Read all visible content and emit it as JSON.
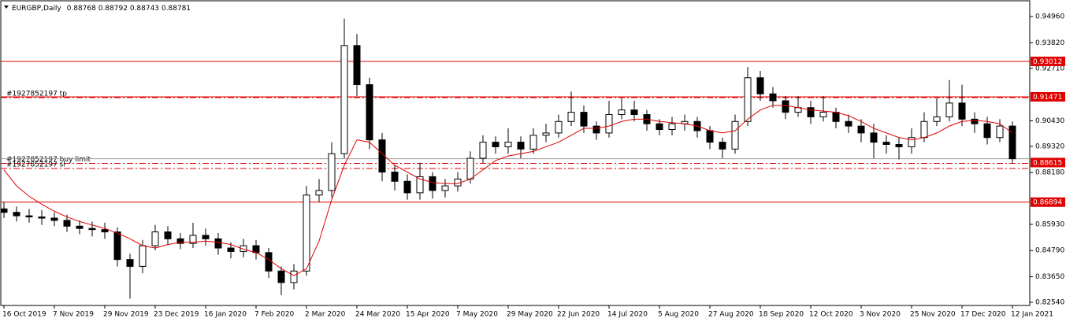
{
  "header": {
    "symbol": "EURGBP,Daily",
    "open": 0.88768,
    "high": 0.88792,
    "low": 0.88743,
    "close": 0.88781
  },
  "chart_data": {
    "type": "candlestick",
    "x": [
      0,
      4,
      8,
      12,
      16,
      20,
      24,
      28,
      32,
      36,
      40,
      44,
      48,
      52,
      56,
      60,
      64,
      68,
      72,
      76,
      80,
      84,
      88,
      92,
      96,
      100,
      104,
      108,
      112,
      116,
      120,
      124,
      128,
      132,
      136,
      140,
      144,
      148,
      152,
      156,
      160,
      164,
      168,
      172,
      176,
      180,
      184,
      188,
      192,
      196,
      200,
      204,
      208,
      212,
      216,
      220,
      224,
      228,
      232,
      236,
      240,
      244,
      248,
      252,
      256,
      260,
      264,
      268,
      272,
      276,
      280,
      284,
      288,
      292,
      296,
      300,
      304,
      308,
      312,
      316,
      320
    ],
    "open": [
      0.866,
      0.8645,
      0.863,
      0.8625,
      0.862,
      0.861,
      0.8585,
      0.8575,
      0.857,
      0.856,
      0.844,
      0.841,
      0.85,
      0.856,
      0.853,
      0.851,
      0.8545,
      0.853,
      0.849,
      0.8475,
      0.85,
      0.847,
      0.839,
      0.834,
      0.839,
      0.872,
      0.874,
      0.89,
      0.937,
      0.92,
      0.896,
      0.882,
      0.878,
      0.873,
      0.88,
      0.874,
      0.876,
      0.879,
      0.888,
      0.895,
      0.893,
      0.895,
      0.892,
      0.898,
      0.899,
      0.904,
      0.908,
      0.902,
      0.899,
      0.907,
      0.909,
      0.907,
      0.903,
      0.9005,
      0.903,
      0.904,
      0.9,
      0.895,
      0.892,
      0.904,
      0.923,
      0.916,
      0.913,
      0.908,
      0.91,
      0.906,
      0.908,
      0.904,
      0.902,
      0.899,
      0.895,
      0.894,
      0.893,
      0.897,
      0.904,
      0.906,
      0.912,
      0.905,
      0.903,
      0.897,
      0.902
    ],
    "high": [
      0.869,
      0.867,
      0.866,
      0.8655,
      0.8645,
      0.8635,
      0.861,
      0.8605,
      0.86,
      0.858,
      0.8465,
      0.8525,
      0.859,
      0.8585,
      0.8555,
      0.86,
      0.8575,
      0.8555,
      0.8515,
      0.853,
      0.8525,
      0.849,
      0.841,
      0.842,
      0.876,
      0.879,
      0.895,
      0.9487,
      0.942,
      0.923,
      0.899,
      0.885,
      0.881,
      0.886,
      0.882,
      0.879,
      0.882,
      0.891,
      0.898,
      0.8975,
      0.901,
      0.8975,
      0.901,
      0.903,
      0.907,
      0.917,
      0.911,
      0.904,
      0.913,
      0.914,
      0.913,
      0.909,
      0.905,
      0.906,
      0.907,
      0.906,
      0.902,
      0.897,
      0.907,
      0.9277,
      0.926,
      0.919,
      0.915,
      0.915,
      0.913,
      0.915,
      0.91,
      0.907,
      0.905,
      0.903,
      0.898,
      0.897,
      0.901,
      0.908,
      0.914,
      0.922,
      0.92,
      0.908,
      0.906,
      0.905,
      0.904
    ],
    "low": [
      0.862,
      0.8605,
      0.86,
      0.859,
      0.8585,
      0.856,
      0.855,
      0.854,
      0.853,
      0.841,
      0.827,
      0.838,
      0.848,
      0.8505,
      0.8485,
      0.849,
      0.85,
      0.846,
      0.8445,
      0.845,
      0.844,
      0.836,
      0.8285,
      0.831,
      0.837,
      0.869,
      0.871,
      0.888,
      0.915,
      0.892,
      0.878,
      0.874,
      0.87,
      0.87,
      0.8705,
      0.871,
      0.8735,
      0.877,
      0.886,
      0.89,
      0.89,
      0.888,
      0.89,
      0.895,
      0.897,
      0.902,
      0.899,
      0.896,
      0.897,
      0.905,
      0.904,
      0.9,
      0.898,
      0.898,
      0.9,
      0.897,
      0.892,
      0.888,
      0.89,
      0.902,
      0.913,
      0.91,
      0.905,
      0.906,
      0.903,
      0.904,
      0.901,
      0.899,
      0.895,
      0.888,
      0.89,
      0.8875,
      0.89,
      0.895,
      0.902,
      0.904,
      0.902,
      0.899,
      0.894,
      0.895,
      0.886
    ],
    "close": [
      0.8645,
      0.863,
      0.8625,
      0.862,
      0.861,
      0.8585,
      0.8575,
      0.857,
      0.856,
      0.844,
      0.841,
      0.85,
      0.856,
      0.853,
      0.851,
      0.8545,
      0.853,
      0.849,
      0.8475,
      0.85,
      0.847,
      0.839,
      0.834,
      0.839,
      0.872,
      0.874,
      0.89,
      0.937,
      0.92,
      0.896,
      0.882,
      0.878,
      0.873,
      0.88,
      0.874,
      0.876,
      0.879,
      0.888,
      0.895,
      0.893,
      0.895,
      0.892,
      0.898,
      0.899,
      0.904,
      0.908,
      0.902,
      0.899,
      0.907,
      0.909,
      0.907,
      0.903,
      0.9005,
      0.903,
      0.904,
      0.9,
      0.895,
      0.892,
      0.904,
      0.923,
      0.916,
      0.913,
      0.908,
      0.91,
      0.906,
      0.908,
      0.904,
      0.902,
      0.899,
      0.895,
      0.894,
      0.893,
      0.897,
      0.904,
      0.906,
      0.912,
      0.905,
      0.903,
      0.897,
      0.902,
      0.8878
    ],
    "ma": {
      "color": "#e00000",
      "values": [
        0.883,
        0.876,
        0.8715,
        0.868,
        0.865,
        0.8625,
        0.8605,
        0.859,
        0.8575,
        0.8555,
        0.853,
        0.85,
        0.849,
        0.8505,
        0.8515,
        0.8515,
        0.852,
        0.8515,
        0.8505,
        0.8485,
        0.847,
        0.844,
        0.84,
        0.837,
        0.84,
        0.852,
        0.87,
        0.885,
        0.896,
        0.895,
        0.89,
        0.885,
        0.882,
        0.879,
        0.8775,
        0.877,
        0.877,
        0.879,
        0.883,
        0.887,
        0.889,
        0.89,
        0.891,
        0.893,
        0.895,
        0.898,
        0.901,
        0.901,
        0.902,
        0.904,
        0.905,
        0.905,
        0.904,
        0.9035,
        0.903,
        0.902,
        0.9,
        0.899,
        0.9,
        0.905,
        0.909,
        0.911,
        0.911,
        0.91,
        0.909,
        0.9085,
        0.908,
        0.9065,
        0.904,
        0.901,
        0.899,
        0.897,
        0.896,
        0.897,
        0.899,
        0.902,
        0.904,
        0.9045,
        0.904,
        0.903,
        0.899
      ]
    },
    "up_color": "#ffffff",
    "down_color": "#000000",
    "xlim": [
      -1,
      326
    ],
    "ylim": [
      0.82403,
      0.95508
    ],
    "xticks": [
      {
        "value": 0,
        "label": "16 Oct 2019"
      },
      {
        "value": 16,
        "label": "7 Nov 2019"
      },
      {
        "value": 32,
        "label": "29 Nov 2019"
      },
      {
        "value": 48,
        "label": "23 Dec 2019"
      },
      {
        "value": 64,
        "label": "16 Jan 2020"
      },
      {
        "value": 80,
        "label": "7 Feb 2020"
      },
      {
        "value": 96,
        "label": "2 Mar 2020"
      },
      {
        "value": 112,
        "label": "24 Mar 2020"
      },
      {
        "value": 128,
        "label": "15 Apr 2020"
      },
      {
        "value": 144,
        "label": "7 May 2020"
      },
      {
        "value": 160,
        "label": "29 May 2020"
      },
      {
        "value": 176,
        "label": "22 Jun 2020"
      },
      {
        "value": 192,
        "label": "14 Jul 2020"
      },
      {
        "value": 208,
        "label": "5 Aug 2020"
      },
      {
        "value": 224,
        "label": "27 Aug 2020"
      },
      {
        "value": 240,
        "label": "18 Sep 2020"
      },
      {
        "value": 256,
        "label": "12 Oct 2020"
      },
      {
        "value": 272,
        "label": "3 Nov 2020"
      },
      {
        "value": 288,
        "label": "25 Nov 2020"
      },
      {
        "value": 304,
        "label": "17 Dec 2020"
      },
      {
        "value": 320,
        "label": "12 Jan 2021"
      }
    ],
    "yticks": [
      {
        "value": 0.9496,
        "label": "0.94960"
      },
      {
        "value": 0.9382,
        "label": "0.93820"
      },
      {
        "value": 0.9271,
        "label": "0.92710"
      },
      {
        "value": 0.9043,
        "label": "0.90430"
      },
      {
        "value": 0.8932,
        "label": "0.89320"
      },
      {
        "value": 0.8818,
        "label": "0.88180"
      },
      {
        "value": 0.8593,
        "label": "0.85930"
      },
      {
        "value": 0.8479,
        "label": "0.84790"
      },
      {
        "value": 0.8365,
        "label": "0.83650"
      },
      {
        "value": 0.8254,
        "label": "0.82540"
      }
    ],
    "levels": [
      {
        "value": 0.93012,
        "tag": true
      },
      {
        "value": 0.91471,
        "tag": false
      },
      {
        "value": 0.86894,
        "tag": true
      }
    ],
    "orders": [
      {
        "label": "#1927852197 tp",
        "value": 0.91471,
        "tag": true
      },
      {
        "label": "#1927852197 buy limit",
        "value": 0.88615,
        "tag": true
      },
      {
        "label": "#1927852197 sl",
        "value": 0.8839,
        "tag": false
      }
    ],
    "level_color": "#e00000"
  }
}
